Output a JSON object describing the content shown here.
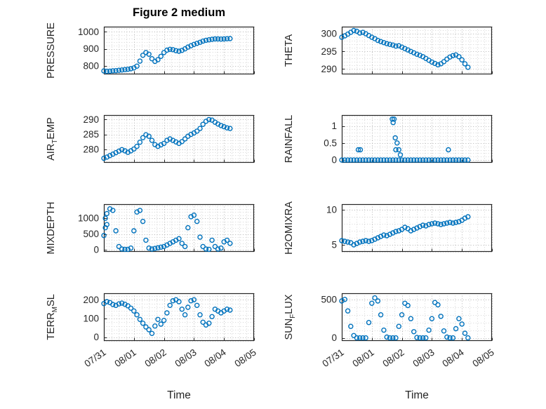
{
  "figure": {
    "title": "Figure 2 medium",
    "xlabel": "Time",
    "xticklabels": [
      "07/31",
      "08/01",
      "08/02",
      "08/03",
      "08/04",
      "08/05"
    ],
    "marker_color": "#0072BD",
    "axis_color": "#262626"
  },
  "chart_data": [
    {
      "name": "PRESSURE",
      "type": "scatter",
      "ylabel_pre": "PRESSURE",
      "ylabel_sub": "",
      "ylabel_post": "",
      "yticks": [
        800,
        900,
        1000
      ],
      "ylim": [
        750,
        1030
      ],
      "xlim": [
        0,
        5
      ],
      "x_step": 0.1,
      "y": [
        770,
        768,
        769,
        771,
        772,
        774,
        776,
        778,
        780,
        783,
        788,
        798,
        828,
        862,
        878,
        868,
        842,
        826,
        836,
        856,
        878,
        892,
        897,
        895,
        889,
        886,
        891,
        900,
        910,
        918,
        926,
        932,
        938,
        945,
        950,
        953,
        956,
        958,
        958,
        957,
        958,
        959,
        960
      ],
      "extra": []
    },
    {
      "name": "THETA",
      "type": "scatter",
      "ylabel_pre": "THETA",
      "ylabel_sub": "",
      "ylabel_post": "",
      "yticks": [
        290,
        295,
        300
      ],
      "ylim": [
        288.5,
        302
      ],
      "xlim": [
        0,
        5
      ],
      "x_step": 0.1,
      "y": [
        299,
        299.4,
        299.9,
        300.4,
        300.9,
        300.7,
        300.2,
        300.4,
        300,
        299.5,
        299,
        298.6,
        298.1,
        297.8,
        297.5,
        297.2,
        297,
        296.8,
        296.5,
        296.6,
        296.2,
        295.8,
        295.4,
        295,
        294.6,
        294.2,
        293.9,
        293.5,
        293,
        292.5,
        292,
        291.6,
        291.2,
        291.5,
        292.1,
        292.8,
        293.4,
        293.8,
        294,
        293.5,
        292.6,
        291.5,
        290.5
      ],
      "extra": []
    },
    {
      "name": "AIR_TEMP",
      "type": "scatter",
      "ylabel_pre": "AIR",
      "ylabel_sub": "T",
      "ylabel_post": "EMP",
      "yticks": [
        280,
        285,
        290
      ],
      "ylim": [
        275.5,
        291.5
      ],
      "xlim": [
        0,
        5
      ],
      "x_step": 0.1,
      "y": [
        277,
        277.4,
        277.9,
        278.4,
        278.9,
        279.4,
        279.9,
        279.5,
        279,
        279.5,
        280.1,
        281,
        282.4,
        283.9,
        284.9,
        284.4,
        283,
        281.6,
        281,
        281.5,
        282,
        283,
        283.5,
        283,
        282.5,
        282,
        282.6,
        283.5,
        284.4,
        285,
        285.5,
        286.1,
        287,
        288.4,
        289.4,
        290,
        289.8,
        289.1,
        288.5,
        288,
        287.6,
        287.2,
        287
      ],
      "extra": []
    },
    {
      "name": "RAINFALL",
      "type": "scatter",
      "ylabel_pre": "RAINFALL",
      "ylabel_sub": "",
      "ylabel_post": "",
      "yticks": [
        0,
        0.5,
        1
      ],
      "ylim": [
        -0.08,
        1.32
      ],
      "xlim": [
        0,
        5
      ],
      "x_step": 0.1,
      "y": [
        0,
        0,
        0,
        0,
        0,
        0,
        0,
        0,
        0,
        0,
        0,
        0,
        0,
        0,
        0,
        0,
        0,
        0,
        0,
        0,
        0,
        0,
        0,
        0,
        0,
        0,
        0,
        0,
        0,
        0,
        0,
        0,
        0,
        0,
        0,
        0,
        0,
        0,
        0,
        0,
        0,
        0,
        0
      ],
      "extra": [
        [
          0.55,
          0.3
        ],
        [
          0.62,
          0.3
        ],
        [
          1.68,
          1.2
        ],
        [
          1.74,
          1.2
        ],
        [
          1.71,
          1.1
        ],
        [
          1.78,
          0.65
        ],
        [
          1.84,
          0.5
        ],
        [
          1.8,
          0.3
        ],
        [
          1.9,
          0.3
        ],
        [
          1.95,
          0.15
        ],
        [
          3.55,
          0.3
        ]
      ]
    },
    {
      "name": "MIXDEPTH",
      "type": "scatter",
      "ylabel_pre": "MIXDEPTH",
      "ylabel_sub": "",
      "ylabel_post": "",
      "yticks": [
        0,
        500,
        1000
      ],
      "ylim": [
        -70,
        1450
      ],
      "xlim": [
        0,
        5
      ],
      "x_step": 0.1,
      "y": [
        450,
        800,
        1300,
        1250,
        600,
        100,
        20,
        10,
        10,
        50,
        600,
        1200,
        1250,
        900,
        300,
        50,
        20,
        40,
        60,
        80,
        100,
        150,
        200,
        250,
        300,
        350,
        200,
        100,
        700,
        1050,
        1100,
        900,
        400,
        100,
        20,
        10,
        300,
        100,
        20,
        50,
        250,
        300,
        200
      ],
      "extra": [
        [
          0.05,
          700
        ],
        [
          0.05,
          1000
        ],
        [
          0.1,
          1150
        ]
      ]
    },
    {
      "name": "H2OMIXRA",
      "type": "scatter",
      "ylabel_pre": "H2OMIXRA",
      "ylabel_sub": "",
      "ylabel_post": "",
      "yticks": [
        5,
        10
      ],
      "ylim": [
        4,
        10.8
      ],
      "xlim": [
        0,
        5
      ],
      "x_step": 0.1,
      "y": [
        5.6,
        5.5,
        5.4,
        5.3,
        5.0,
        5.2,
        5.4,
        5.5,
        5.6,
        5.5,
        5.6,
        5.8,
        6.0,
        6.2,
        6.4,
        6.3,
        6.5,
        6.7,
        6.9,
        7.0,
        7.2,
        7.5,
        7.3,
        7.0,
        7.2,
        7.4,
        7.6,
        7.8,
        7.7,
        7.9,
        8.0,
        8.1,
        8.0,
        7.9,
        8.0,
        8.1,
        8.2,
        8.1,
        8.2,
        8.3,
        8.5,
        8.8,
        9.0
      ],
      "extra": []
    },
    {
      "name": "TERR_MSL",
      "type": "scatter",
      "ylabel_pre": "TERR",
      "ylabel_sub": "M",
      "ylabel_post": "SL",
      "yticks": [
        0,
        100,
        200
      ],
      "ylim": [
        -20,
        235
      ],
      "xlim": [
        0,
        5
      ],
      "x_step": 0.1,
      "y": [
        180,
        190,
        185,
        175,
        170,
        178,
        182,
        176,
        168,
        155,
        140,
        120,
        95,
        75,
        55,
        40,
        20,
        60,
        95,
        70,
        90,
        130,
        170,
        195,
        200,
        190,
        150,
        120,
        160,
        195,
        200,
        170,
        120,
        80,
        65,
        75,
        110,
        150,
        140,
        130,
        140,
        150,
        145
      ],
      "extra": []
    },
    {
      "name": "SUN_FLUX",
      "type": "scatter",
      "ylabel_pre": "SUN",
      "ylabel_sub": "F",
      "ylabel_post": "LUX",
      "yticks": [
        0,
        500
      ],
      "ylim": [
        -40,
        580
      ],
      "xlim": [
        0,
        5
      ],
      "x_step": 0.1,
      "y": [
        480,
        500,
        350,
        150,
        30,
        0,
        0,
        0,
        0,
        200,
        450,
        520,
        480,
        300,
        100,
        10,
        0,
        0,
        0,
        150,
        300,
        450,
        420,
        250,
        80,
        5,
        0,
        0,
        0,
        100,
        250,
        460,
        430,
        280,
        90,
        10,
        0,
        0,
        120,
        250,
        180,
        60,
        0
      ],
      "extra": []
    }
  ]
}
